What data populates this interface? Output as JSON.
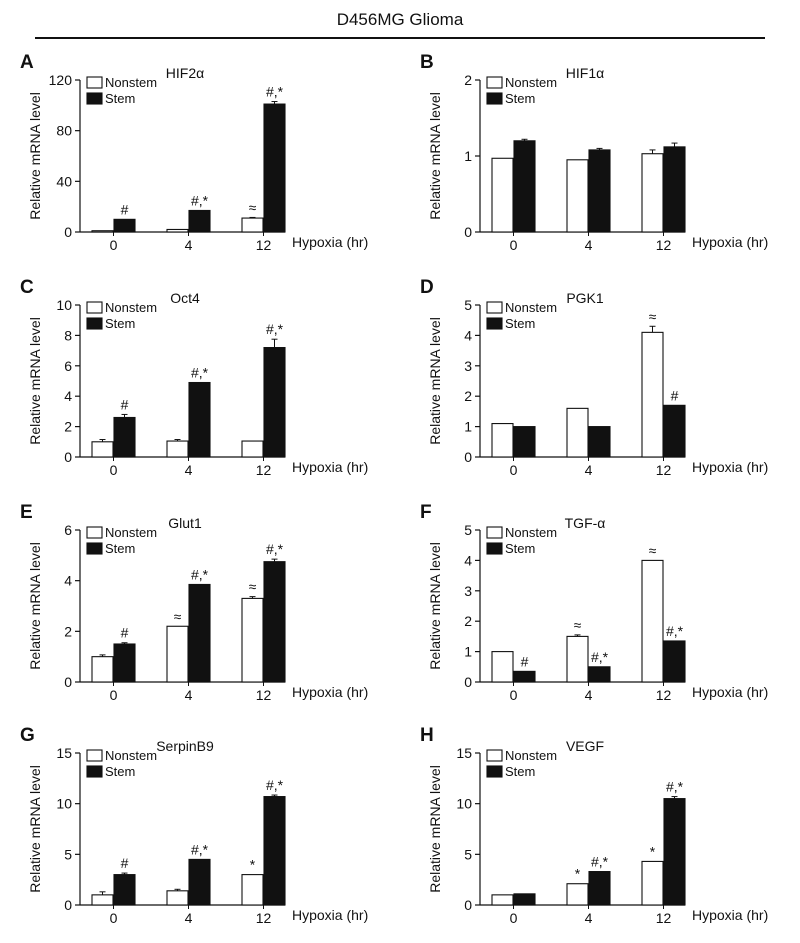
{
  "figure": {
    "title": "D456MG Glioma"
  },
  "chart_data": [
    {
      "panel": "A",
      "title": "HIF2α",
      "type": "bar",
      "ylabel": "Relative mRNA level",
      "xlabel": "Hypoxia (hr)",
      "categories": [
        "0",
        "4",
        "12"
      ],
      "ylim": [
        0,
        120
      ],
      "yticks": [
        0,
        40,
        80,
        120
      ],
      "legend": [
        "Nonstem",
        "Stem"
      ],
      "series": [
        {
          "name": "Nonstem",
          "values": [
            1,
            2,
            11
          ],
          "errors": [
            0,
            0,
            0.5
          ],
          "annotations": [
            "",
            "",
            "≈"
          ]
        },
        {
          "name": "Stem",
          "values": [
            10,
            17,
            101
          ],
          "errors": [
            0,
            0,
            2
          ],
          "annotations": [
            "#",
            "#,*",
            "#,*"
          ]
        }
      ]
    },
    {
      "panel": "B",
      "title": "HIF1α",
      "type": "bar",
      "ylabel": "Relative mRNA level",
      "xlabel": "Hypoxia (hr)",
      "categories": [
        "0",
        "4",
        "12"
      ],
      "ylim": [
        0,
        2
      ],
      "yticks": [
        0,
        1,
        2
      ],
      "legend": [
        "Nonstem",
        "Stem"
      ],
      "series": [
        {
          "name": "Nonstem",
          "values": [
            0.97,
            0.95,
            1.03
          ],
          "errors": [
            0,
            0,
            0.05
          ],
          "annotations": [
            "",
            "",
            ""
          ]
        },
        {
          "name": "Stem",
          "values": [
            1.2,
            1.08,
            1.12
          ],
          "errors": [
            0.02,
            0.02,
            0.05
          ],
          "annotations": [
            "",
            "",
            ""
          ]
        }
      ]
    },
    {
      "panel": "C",
      "title": "Oct4",
      "type": "bar",
      "ylabel": "Relative mRNA level",
      "xlabel": "Hypoxia (hr)",
      "categories": [
        "0",
        "4",
        "12"
      ],
      "ylim": [
        0,
        10
      ],
      "yticks": [
        0,
        2,
        4,
        6,
        8,
        10
      ],
      "legend": [
        "Nonstem",
        "Stem"
      ],
      "series": [
        {
          "name": "Nonstem",
          "values": [
            1,
            1.05,
            1.05
          ],
          "errors": [
            0.15,
            0.1,
            0
          ],
          "annotations": [
            "",
            "",
            ""
          ]
        },
        {
          "name": "Stem",
          "values": [
            2.6,
            4.9,
            7.2
          ],
          "errors": [
            0.2,
            0,
            0.55
          ],
          "annotations": [
            "#",
            "#,*",
            "#,*"
          ]
        }
      ]
    },
    {
      "panel": "D",
      "title": "PGK1",
      "type": "bar",
      "ylabel": "Relative mRNA level",
      "xlabel": "Hypoxia (hr)",
      "categories": [
        "0",
        "4",
        "12"
      ],
      "ylim": [
        0,
        5
      ],
      "yticks": [
        0,
        1,
        2,
        3,
        4,
        5
      ],
      "legend": [
        "Nonstem",
        "Stem"
      ],
      "series": [
        {
          "name": "Nonstem",
          "values": [
            1.1,
            1.6,
            4.1
          ],
          "errors": [
            0,
            0,
            0.2
          ],
          "annotations": [
            "",
            "",
            "≈"
          ]
        },
        {
          "name": "Stem",
          "values": [
            1,
            1,
            1.7
          ],
          "errors": [
            0,
            0,
            0
          ],
          "annotations": [
            "",
            "",
            "#"
          ]
        }
      ]
    },
    {
      "panel": "E",
      "title": "Glut1",
      "type": "bar",
      "ylabel": "Relative mRNA level",
      "xlabel": "Hypoxia (hr)",
      "categories": [
        "0",
        "4",
        "12"
      ],
      "ylim": [
        0,
        6
      ],
      "yticks": [
        0,
        2,
        4,
        6
      ],
      "legend": [
        "Nonstem",
        "Stem"
      ],
      "series": [
        {
          "name": "Nonstem",
          "values": [
            1,
            2.2,
            3.3
          ],
          "errors": [
            0.07,
            0,
            0.07
          ],
          "annotations": [
            "",
            "≈",
            "≈"
          ]
        },
        {
          "name": "Stem",
          "values": [
            1.5,
            3.85,
            4.75
          ],
          "errors": [
            0.05,
            0,
            0.1
          ],
          "annotations": [
            "#",
            "#,*",
            "#,*"
          ]
        }
      ]
    },
    {
      "panel": "F",
      "title": "TGF-α",
      "type": "bar",
      "ylabel": "Relative mRNA level",
      "xlabel": "Hypoxia (hr)",
      "categories": [
        "0",
        "4",
        "12"
      ],
      "ylim": [
        0,
        5
      ],
      "yticks": [
        0,
        1,
        2,
        3,
        4,
        5
      ],
      "legend": [
        "Nonstem",
        "Stem"
      ],
      "series": [
        {
          "name": "Nonstem",
          "values": [
            1,
            1.5,
            4
          ],
          "errors": [
            0,
            0.05,
            0
          ],
          "annotations": [
            "",
            "≈",
            "≈"
          ]
        },
        {
          "name": "Stem",
          "values": [
            0.35,
            0.5,
            1.35
          ],
          "errors": [
            0,
            0,
            0
          ],
          "annotations": [
            "#",
            "#,*",
            "#,*"
          ]
        }
      ]
    },
    {
      "panel": "G",
      "title": "SerpinB9",
      "type": "bar",
      "ylabel": "Relative mRNA level",
      "xlabel": "Hypoxia (hr)",
      "categories": [
        "0",
        "4",
        "12"
      ],
      "ylim": [
        0,
        15
      ],
      "yticks": [
        0,
        5,
        10,
        15
      ],
      "legend": [
        "Nonstem",
        "Stem"
      ],
      "series": [
        {
          "name": "Nonstem",
          "values": [
            1,
            1.4,
            3
          ],
          "errors": [
            0.3,
            0.15,
            0
          ],
          "annotations": [
            "",
            "",
            "*"
          ]
        },
        {
          "name": "Stem",
          "values": [
            3,
            4.5,
            10.7
          ],
          "errors": [
            0.15,
            0,
            0.15
          ],
          "annotations": [
            "#",
            "#,*",
            "#,*"
          ]
        }
      ]
    },
    {
      "panel": "H",
      "title": "VEGF",
      "type": "bar",
      "ylabel": "Relative mRNA level",
      "xlabel": "Hypoxia (hr)",
      "categories": [
        "0",
        "4",
        "12"
      ],
      "ylim": [
        0,
        15
      ],
      "yticks": [
        0,
        5,
        10,
        15
      ],
      "legend": [
        "Nonstem",
        "Stem"
      ],
      "series": [
        {
          "name": "Nonstem",
          "values": [
            1,
            2.1,
            4.3
          ],
          "errors": [
            0,
            0,
            0
          ],
          "annotations": [
            "",
            "*",
            "*"
          ]
        },
        {
          "name": "Stem",
          "values": [
            1.1,
            3.3,
            10.5
          ],
          "errors": [
            0,
            0,
            0.2
          ],
          "annotations": [
            "",
            "#,*",
            "#,*"
          ]
        }
      ]
    }
  ]
}
